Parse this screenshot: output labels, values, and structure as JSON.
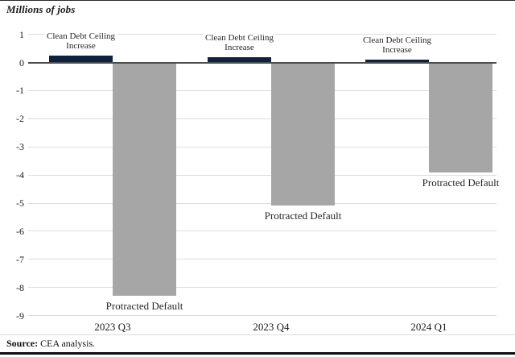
{
  "header": {
    "title": "Millions of jobs"
  },
  "footer": {
    "source_label": "Source:",
    "source_text": " CEA analysis."
  },
  "chart_data": {
    "type": "bar",
    "title": "Millions of jobs",
    "categories": [
      "2023 Q3",
      "2023 Q4",
      "2024 Q1"
    ],
    "series": [
      {
        "name": "Clean Debt Ceiling Increase",
        "label_lines": [
          "Clean Debt Ceiling",
          "Increase"
        ],
        "values": [
          0.25,
          0.2,
          0.1
        ],
        "color": "#0e2240"
      },
      {
        "name": "Protracted Default",
        "label_lines": [
          "Protracted Default"
        ],
        "values": [
          -8.3,
          -5.1,
          -3.9
        ],
        "color": "#a6a6a6"
      }
    ],
    "ylabel": "Millions of jobs",
    "ylim": [
      -9,
      1
    ],
    "yticks": [
      1,
      0,
      -1,
      -2,
      -3,
      -4,
      -5,
      -6,
      -7,
      -8,
      -9
    ],
    "grid": true,
    "legend_position": "labels-on-bars",
    "annotations": [
      "Clean Debt Ceiling Increase",
      "Protracted Default"
    ],
    "source": "CEA analysis.",
    "colors": {
      "clean_increase_bar": "#0e2240",
      "protracted_default_bar": "#a6a6a6",
      "gridline": "#dcdcdc",
      "zero_line": "#4d4d4d",
      "text": "#1a1a1a"
    }
  }
}
